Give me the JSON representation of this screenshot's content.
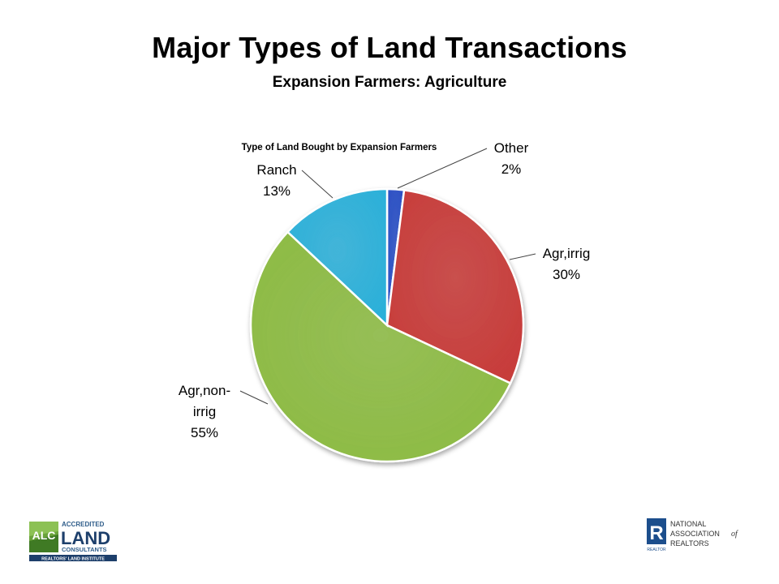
{
  "slide": {
    "title": "Major Types of Land Transactions",
    "subtitle": "Expansion Farmers:  Agriculture"
  },
  "chart_data": {
    "type": "pie",
    "title": "Type of Land Bought by Expansion Farmers",
    "slices": [
      {
        "label_lines": [
          "Other"
        ],
        "value": 2,
        "label": "2%",
        "color": "#2a4fc4"
      },
      {
        "label_lines": [
          "Agr,irrig"
        ],
        "value": 30,
        "label": "30%",
        "color": "#c73c3a"
      },
      {
        "label_lines": [
          "Agr,non-",
          "irrig"
        ],
        "value": 55,
        "label": "55%",
        "color": "#8dbb44"
      },
      {
        "label_lines": [
          "Ranch"
        ],
        "value": 13,
        "label": "13%",
        "color": "#2cb0d9"
      }
    ],
    "legend": "none"
  },
  "logos": {
    "left": {
      "mark": "ALC",
      "line1": "ACCREDITED",
      "word": "LAND",
      "line2": "CONSULTANTS",
      "tagline": "REALTORS' LAND INSTITUTE"
    },
    "right": {
      "mark": "R",
      "line1": "NATIONAL",
      "line2": "ASSOCIATION",
      "of": "of",
      "line3": "REALTORS",
      "small": "REALTOR"
    }
  }
}
